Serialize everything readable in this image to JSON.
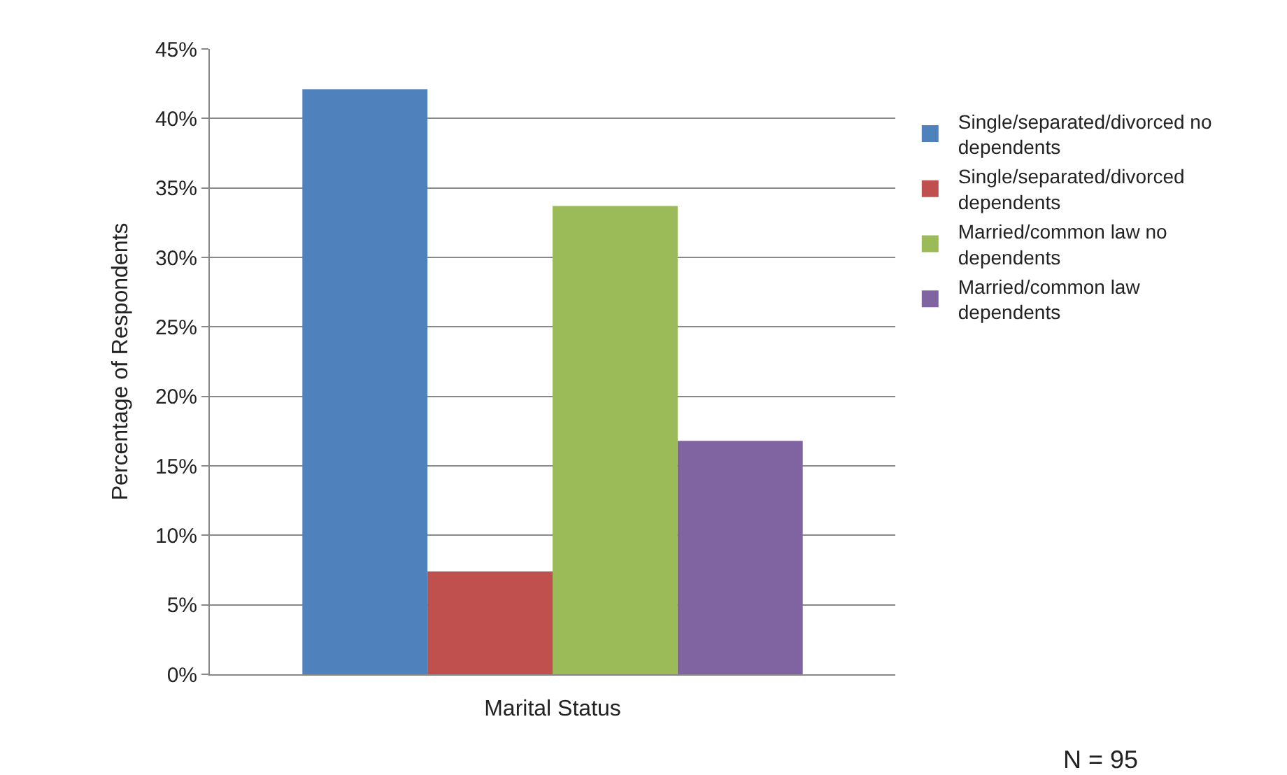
{
  "chart_data": {
    "type": "bar",
    "xlabel": "Marital Status",
    "ylabel": "Percentage of Respondents",
    "categories": [
      null
    ],
    "series": [
      {
        "name": "Single/separated/divorced no dependents",
        "color": "#4f81bd",
        "values": [
          42.1
        ]
      },
      {
        "name": "Single/separated/divorced dependents",
        "color": "#c0504d",
        "values": [
          7.4
        ]
      },
      {
        "name": "Married/common law no dependents",
        "color": "#9bbb59",
        "values": [
          33.7
        ]
      },
      {
        "name": "Married/common law dependents",
        "color": "#8064a2",
        "values": [
          16.8
        ]
      }
    ],
    "ylim": [
      0,
      45
    ],
    "yticks": [
      {
        "value": 0,
        "label": "0%"
      },
      {
        "value": 5,
        "label": "5%"
      },
      {
        "value": 10,
        "label": "10%"
      },
      {
        "value": 15,
        "label": "15%"
      },
      {
        "value": 20,
        "label": "20%"
      },
      {
        "value": 25,
        "label": "25%"
      },
      {
        "value": 30,
        "label": "30%"
      },
      {
        "value": 35,
        "label": "35%"
      },
      {
        "value": 40,
        "label": "40%"
      },
      {
        "value": 45,
        "label": "45%"
      }
    ],
    "grid": "y",
    "legend": "right",
    "annotations": [
      "N = 95"
    ]
  }
}
